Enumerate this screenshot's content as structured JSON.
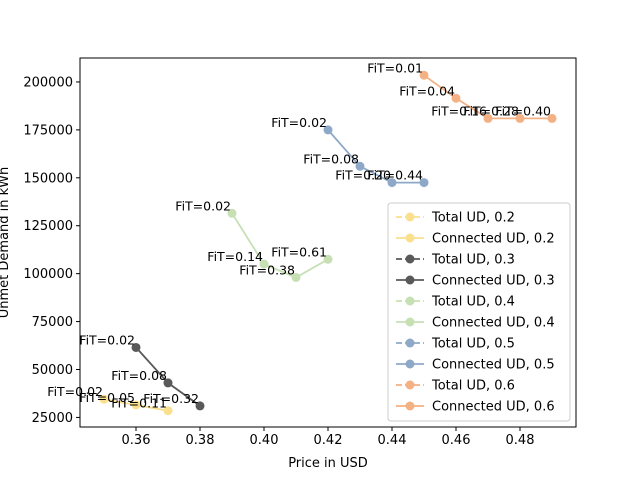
{
  "chart_data": {
    "type": "line",
    "title": "",
    "xlabel": "Price in USD",
    "ylabel": "Unmet Demand in kWh",
    "xlim": [
      0.3425,
      0.4975
    ],
    "ylim": [
      20000,
      212500
    ],
    "x_ticks": [
      0.36,
      0.38,
      0.4,
      0.42,
      0.44,
      0.46,
      0.48
    ],
    "x_tick_labels": [
      "0.36",
      "0.38",
      "0.40",
      "0.42",
      "0.44",
      "0.46",
      "0.48"
    ],
    "y_ticks": [
      25000,
      50000,
      75000,
      100000,
      125000,
      150000,
      175000,
      200000
    ],
    "y_tick_labels": [
      "25000",
      "50000",
      "75000",
      "100000",
      "125000",
      "150000",
      "175000",
      "200000"
    ],
    "grid": false,
    "legend_position": "lower-right",
    "series": [
      {
        "name": "Total UD, 0.2",
        "style": "dashed",
        "color": "#fadf8e",
        "x": [],
        "y": [],
        "labels": []
      },
      {
        "name": "Connected UD, 0.2",
        "style": "solid",
        "color": "#fadf8e",
        "x": [
          0.35,
          0.36,
          0.37
        ],
        "y": [
          34500,
          31500,
          28500
        ],
        "labels": [
          "FiT=0.02",
          "FiT=0.05",
          "FiT=0.11"
        ]
      },
      {
        "name": "Total UD, 0.3",
        "style": "dashed",
        "color": "#595959",
        "x": [],
        "y": [],
        "labels": []
      },
      {
        "name": "Connected UD, 0.3",
        "style": "solid",
        "color": "#595959",
        "x": [
          0.36,
          0.37,
          0.38
        ],
        "y": [
          61500,
          43000,
          31000
        ],
        "labels": [
          "FiT=0.02",
          "FiT=0.08",
          "FiT=0.32"
        ]
      },
      {
        "name": "Total UD, 0.4",
        "style": "dashed",
        "color": "#c6e0b4",
        "x": [],
        "y": [],
        "labels": []
      },
      {
        "name": "Connected UD, 0.4",
        "style": "solid",
        "color": "#c6e0b4",
        "x": [
          0.39,
          0.4,
          0.41,
          0.42
        ],
        "y": [
          131500,
          105000,
          98000,
          107500
        ],
        "labels": [
          "FiT=0.02",
          "FiT=0.14",
          "FiT=0.38",
          "FiT=0.61"
        ]
      },
      {
        "name": "Total UD, 0.5",
        "style": "dashed",
        "color": "#8ea9c8",
        "x": [],
        "y": [],
        "labels": []
      },
      {
        "name": "Connected UD, 0.5",
        "style": "solid",
        "color": "#8ea9c8",
        "x": [
          0.42,
          0.43,
          0.44,
          0.45
        ],
        "y": [
          175000,
          156000,
          147500,
          147500
        ],
        "labels": [
          "FiT=0.02",
          "FiT=0.08",
          "FiT=0.20",
          "FiT=0.44"
        ]
      },
      {
        "name": "Total UD, 0.6",
        "style": "dashed",
        "color": "#f4b183",
        "x": [],
        "y": [],
        "labels": []
      },
      {
        "name": "Connected UD, 0.6",
        "style": "solid",
        "color": "#f4b183",
        "x": [
          0.45,
          0.46,
          0.47,
          0.48,
          0.49
        ],
        "y": [
          203500,
          191500,
          181000,
          181000,
          181000
        ],
        "labels": [
          "FiT=0.01",
          "FiT=0.04",
          "FiT=0.16",
          "FiT=0.28",
          "FiT=0.40"
        ]
      }
    ]
  }
}
